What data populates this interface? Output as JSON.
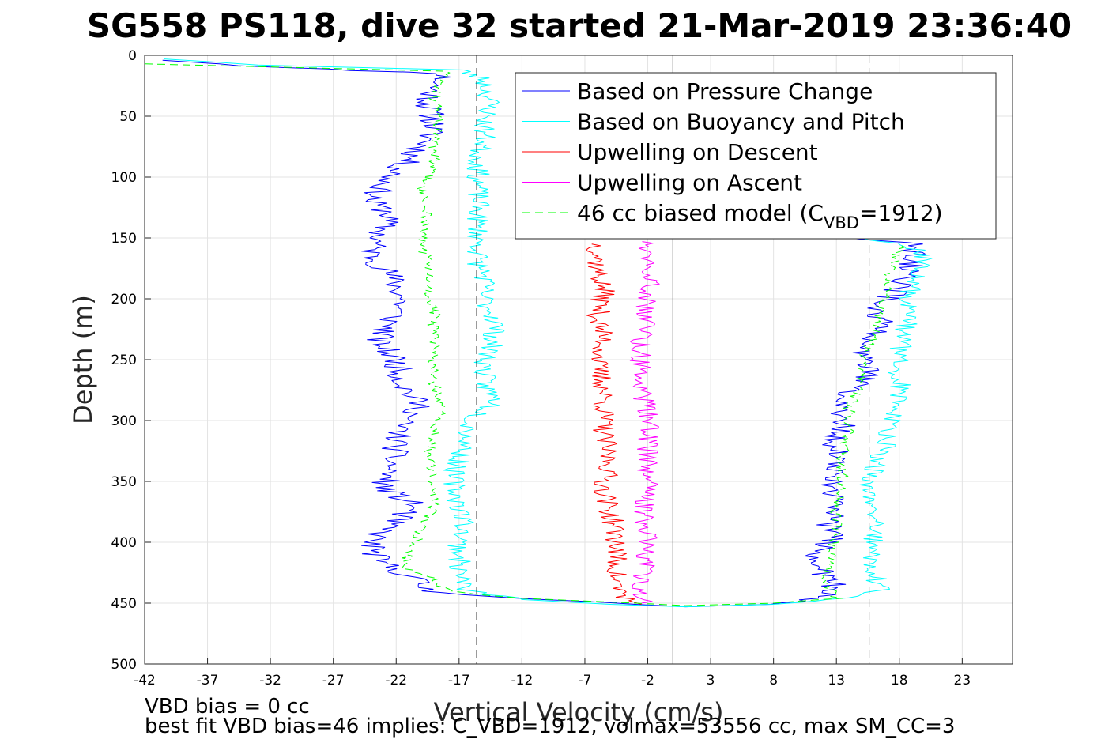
{
  "chart_data": {
    "type": "line",
    "title": "SG558 PS118, dive 32 started 21-Mar-2019 23:36:40",
    "xlabel": "Vertical Velocity (cm/s)",
    "ylabel": "Depth (m)",
    "xlim": [
      -42,
      27
    ],
    "ylim": [
      0,
      500
    ],
    "y_reversed": true,
    "grid": true,
    "x_ticks": [
      -42,
      -37,
      -32,
      -27,
      -22,
      -17,
      -12,
      -7,
      -2,
      3,
      8,
      13,
      18,
      23
    ],
    "x_tick_labels": [
      "-42",
      "-37",
      "-32",
      "-27",
      "-22",
      "-17",
      "-12",
      "-7",
      "-2",
      "3",
      "8",
      "13",
      "18",
      "23"
    ],
    "y_ticks": [
      0,
      50,
      100,
      150,
      200,
      250,
      300,
      350,
      400,
      450,
      500
    ],
    "y_tick_labels": [
      "0",
      "50",
      "100",
      "150",
      "200",
      "250",
      "300",
      "350",
      "400",
      "450",
      "500"
    ],
    "legend_position": "top-right",
    "reference_lines": [
      {
        "x": -15.6,
        "style": "dashed",
        "color": "#000000"
      },
      {
        "x": 0,
        "style": "solid",
        "color": "#000000"
      },
      {
        "x": 15.6,
        "style": "dashed",
        "color": "#000000"
      }
    ],
    "series": [
      {
        "name": "Based on Pressure Change",
        "color": "#0000ff",
        "style": "solid",
        "noise": 1.1,
        "seed": 11,
        "points": [
          [
            -40,
            4
          ],
          [
            -31.5,
            10
          ],
          [
            -18,
            15
          ],
          [
            -19,
            25
          ],
          [
            -19.5,
            40
          ],
          [
            -19,
            55
          ],
          [
            -19.5,
            70
          ],
          [
            -21,
            85
          ],
          [
            -22.5,
            100
          ],
          [
            -24,
            120
          ],
          [
            -22.5,
            130
          ],
          [
            -23.5,
            150
          ],
          [
            -24,
            165
          ],
          [
            -22.5,
            180
          ],
          [
            -21.5,
            200
          ],
          [
            -22.5,
            220
          ],
          [
            -23.5,
            235
          ],
          [
            -22,
            250
          ],
          [
            -21.5,
            270
          ],
          [
            -20,
            290
          ],
          [
            -21.5,
            300
          ],
          [
            -22,
            320
          ],
          [
            -22.5,
            340
          ],
          [
            -23,
            355
          ],
          [
            -20.5,
            370
          ],
          [
            -22.5,
            385
          ],
          [
            -24,
            400
          ],
          [
            -23.5,
            415
          ],
          [
            -20.5,
            430
          ],
          [
            -19.5,
            440
          ],
          [
            -12,
            446
          ],
          [
            -3,
            451
          ],
          [
            1,
            453
          ],
          [
            7,
            451
          ],
          [
            12,
            446
          ],
          [
            13,
            440
          ],
          [
            12,
            425
          ],
          [
            11,
            410
          ],
          [
            12.5,
            400
          ],
          [
            12.5,
            380
          ],
          [
            13,
            360
          ],
          [
            12.5,
            340
          ],
          [
            13,
            320
          ],
          [
            13.5,
            300
          ],
          [
            14,
            280
          ],
          [
            15.5,
            260
          ],
          [
            15,
            240
          ],
          [
            16.5,
            220
          ],
          [
            16.5,
            205
          ],
          [
            18,
            190
          ],
          [
            19,
            170
          ],
          [
            19,
            155
          ],
          [
            14,
            150
          ]
        ]
      },
      {
        "name": "Based on Buoyancy and Pitch",
        "color": "#00ffff",
        "style": "solid",
        "noise": 0.9,
        "seed": 23,
        "points": [
          [
            -40,
            3
          ],
          [
            -33,
            8
          ],
          [
            -17,
            12
          ],
          [
            -15,
            20
          ],
          [
            -14.5,
            40
          ],
          [
            -15,
            55
          ],
          [
            -15,
            70
          ],
          [
            -15.5,
            85
          ],
          [
            -15.5,
            110
          ],
          [
            -15.5,
            130
          ],
          [
            -15.5,
            150
          ],
          [
            -15.5,
            170
          ],
          [
            -15,
            180
          ],
          [
            -15,
            200
          ],
          [
            -14,
            220
          ],
          [
            -14.5,
            240
          ],
          [
            -15,
            255
          ],
          [
            -15,
            270
          ],
          [
            -14,
            285
          ],
          [
            -16,
            300
          ],
          [
            -16.5,
            320
          ],
          [
            -17.5,
            345
          ],
          [
            -17,
            370
          ],
          [
            -16.5,
            385
          ],
          [
            -17,
            400
          ],
          [
            -17,
            420
          ],
          [
            -16.5,
            440
          ],
          [
            -12,
            447
          ],
          [
            -5,
            451
          ],
          [
            1,
            453
          ],
          [
            8,
            451
          ],
          [
            13,
            447
          ],
          [
            16.5,
            440
          ],
          [
            16,
            420
          ],
          [
            16,
            400
          ],
          [
            16,
            380
          ],
          [
            15.5,
            360
          ],
          [
            16,
            340
          ],
          [
            17,
            320
          ],
          [
            17.5,
            300
          ],
          [
            18,
            285
          ],
          [
            18,
            265
          ],
          [
            18,
            245
          ],
          [
            18.5,
            225
          ],
          [
            18.5,
            205
          ],
          [
            19,
            190
          ],
          [
            20,
            175
          ],
          [
            20,
            160
          ],
          [
            15,
            150
          ]
        ]
      },
      {
        "name": "Upwelling on Descent",
        "color": "#ff0000",
        "style": "solid",
        "noise": 0.9,
        "seed": 37,
        "points": [
          [
            -6,
            155
          ],
          [
            -6,
            175
          ],
          [
            -5.5,
            195
          ],
          [
            -6,
            215
          ],
          [
            -5.5,
            235
          ],
          [
            -6,
            255
          ],
          [
            -5.5,
            275
          ],
          [
            -5.5,
            295
          ],
          [
            -5.5,
            315
          ],
          [
            -5,
            335
          ],
          [
            -5.5,
            355
          ],
          [
            -5,
            375
          ],
          [
            -4.5,
            395
          ],
          [
            -4.5,
            415
          ],
          [
            -4.5,
            435
          ],
          [
            -3.5,
            448
          ],
          [
            -2.5,
            451
          ]
        ]
      },
      {
        "name": "Upwelling on Ascent",
        "color": "#ff00ff",
        "style": "solid",
        "noise": 0.9,
        "seed": 49,
        "points": [
          [
            -2,
            153
          ],
          [
            -1.5,
            175
          ],
          [
            -2,
            195
          ],
          [
            -2,
            215
          ],
          [
            -2.5,
            235
          ],
          [
            -2.5,
            255
          ],
          [
            -2.5,
            275
          ],
          [
            -2,
            295
          ],
          [
            -2,
            315
          ],
          [
            -2,
            335
          ],
          [
            -2,
            355
          ],
          [
            -2.5,
            375
          ],
          [
            -2,
            395
          ],
          [
            -2,
            415
          ],
          [
            -2.5,
            435
          ],
          [
            -2.5,
            450
          ]
        ]
      },
      {
        "name": "46 cc biased model (C",
        "legend_sub": "VBD",
        "legend_suffix": "=1912)",
        "color": "#00ff00",
        "style": "dashed",
        "noise": 0.5,
        "seed": 61,
        "points": [
          [
            -42,
            7
          ],
          [
            -34,
            9
          ],
          [
            -18,
            13
          ],
          [
            -19,
            35
          ],
          [
            -18.5,
            50
          ],
          [
            -19,
            70
          ],
          [
            -19,
            90
          ],
          [
            -20,
            110
          ],
          [
            -19.5,
            130
          ],
          [
            -20,
            150
          ],
          [
            -19.5,
            170
          ],
          [
            -19.5,
            190
          ],
          [
            -19,
            210
          ],
          [
            -19,
            230
          ],
          [
            -19,
            250
          ],
          [
            -19,
            270
          ],
          [
            -18.5,
            290
          ],
          [
            -19,
            310
          ],
          [
            -19.5,
            330
          ],
          [
            -19,
            350
          ],
          [
            -19,
            370
          ],
          [
            -20,
            390
          ],
          [
            -21,
            410
          ],
          [
            -21.5,
            420
          ],
          [
            -19,
            430
          ],
          [
            -18,
            440
          ],
          [
            -12,
            446
          ],
          [
            -3,
            450
          ],
          [
            1,
            452
          ],
          [
            8,
            450
          ],
          [
            13,
            446
          ],
          [
            12,
            430
          ],
          [
            12.5,
            410
          ],
          [
            13,
            390
          ],
          [
            13,
            370
          ],
          [
            13.5,
            350
          ],
          [
            13.5,
            330
          ],
          [
            14,
            310
          ],
          [
            14,
            290
          ],
          [
            15,
            270
          ],
          [
            15,
            250
          ],
          [
            16,
            230
          ],
          [
            16.5,
            210
          ],
          [
            17,
            190
          ],
          [
            17.5,
            170
          ],
          [
            18,
            155
          ]
        ]
      }
    ]
  },
  "notes": {
    "line1": "VBD bias = 0 cc",
    "line2": "best fit VBD bias=46 implies: C_VBD=1912, volmax=53556 cc, max SM_CC=3"
  }
}
